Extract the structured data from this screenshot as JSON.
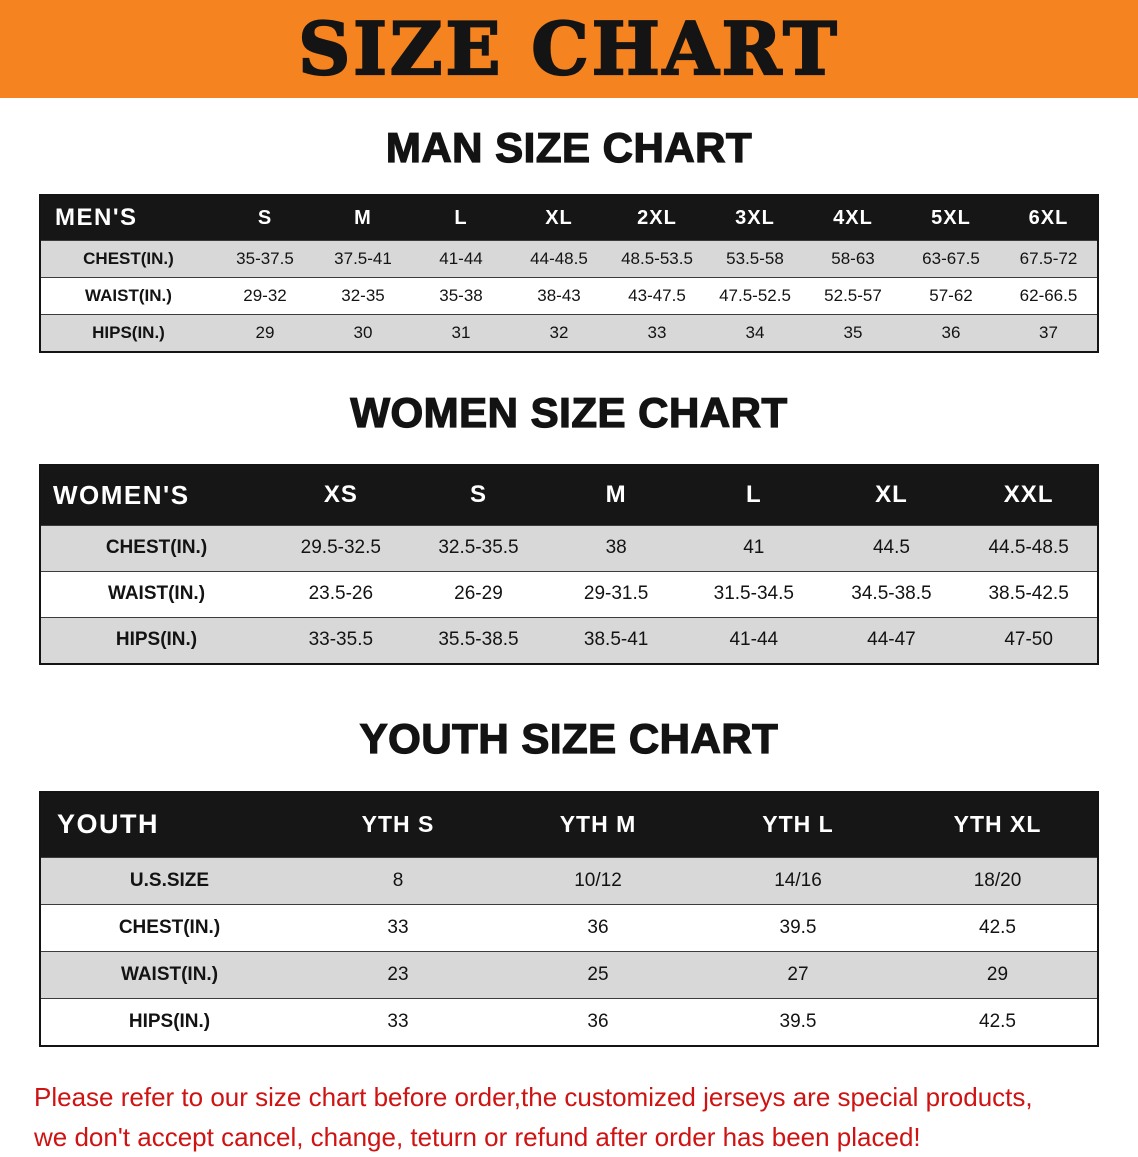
{
  "banner": {
    "title": "SIZE CHART",
    "bg_color": "#F5831F"
  },
  "sections": [
    {
      "heading": "MAN SIZE CHART",
      "table": {
        "header": [
          "MEN'S",
          "S",
          "M",
          "L",
          "XL",
          "2XL",
          "3XL",
          "4XL",
          "5XL",
          "6XL"
        ],
        "rows": [
          [
            "CHEST(IN.)",
            "35-37.5",
            "37.5-41",
            "41-44",
            "44-48.5",
            "48.5-53.5",
            "53.5-58",
            "58-63",
            "63-67.5",
            "67.5-72"
          ],
          [
            "WAIST(IN.)",
            "29-32",
            "32-35",
            "35-38",
            "38-43",
            "43-47.5",
            "47.5-52.5",
            "52.5-57",
            "57-62",
            "62-66.5"
          ],
          [
            "HIPS(IN.)",
            "29",
            "30",
            "31",
            "32",
            "33",
            "34",
            "35",
            "36",
            "37"
          ]
        ]
      }
    },
    {
      "heading": "WOMEN SIZE CHART",
      "table": {
        "header": [
          "WOMEN'S",
          "XS",
          "S",
          "M",
          "L",
          "XL",
          "XXL"
        ],
        "rows": [
          [
            "CHEST(IN.)",
            "29.5-32.5",
            "32.5-35.5",
            "38",
            "41",
            "44.5",
            "44.5-48.5"
          ],
          [
            "WAIST(IN.)",
            "23.5-26",
            "26-29",
            "29-31.5",
            "31.5-34.5",
            "34.5-38.5",
            "38.5-42.5"
          ],
          [
            "HIPS(IN.)",
            "33-35.5",
            "35.5-38.5",
            "38.5-41",
            "41-44",
            "44-47",
            "47-50"
          ]
        ]
      }
    },
    {
      "heading": "YOUTH SIZE CHART",
      "table": {
        "header": [
          "YOUTH",
          "YTH S",
          "YTH M",
          "YTH L",
          "YTH XL"
        ],
        "rows": [
          [
            "U.S.SIZE",
            "8",
            "10/12",
            "14/16",
            "18/20"
          ],
          [
            "CHEST(IN.)",
            "33",
            "36",
            "39.5",
            "42.5"
          ],
          [
            "WAIST(IN.)",
            "23",
            "25",
            "27",
            "29"
          ],
          [
            "HIPS(IN.)",
            "33",
            "36",
            "39.5",
            "42.5"
          ]
        ]
      }
    }
  ],
  "disclaimer": {
    "color": "#cf1212",
    "line1": "Please refer to our size chart before order,the customized jerseys are special products,",
    "line2": "we don't accept cancel, change, teturn or refund after order has been placed!"
  }
}
